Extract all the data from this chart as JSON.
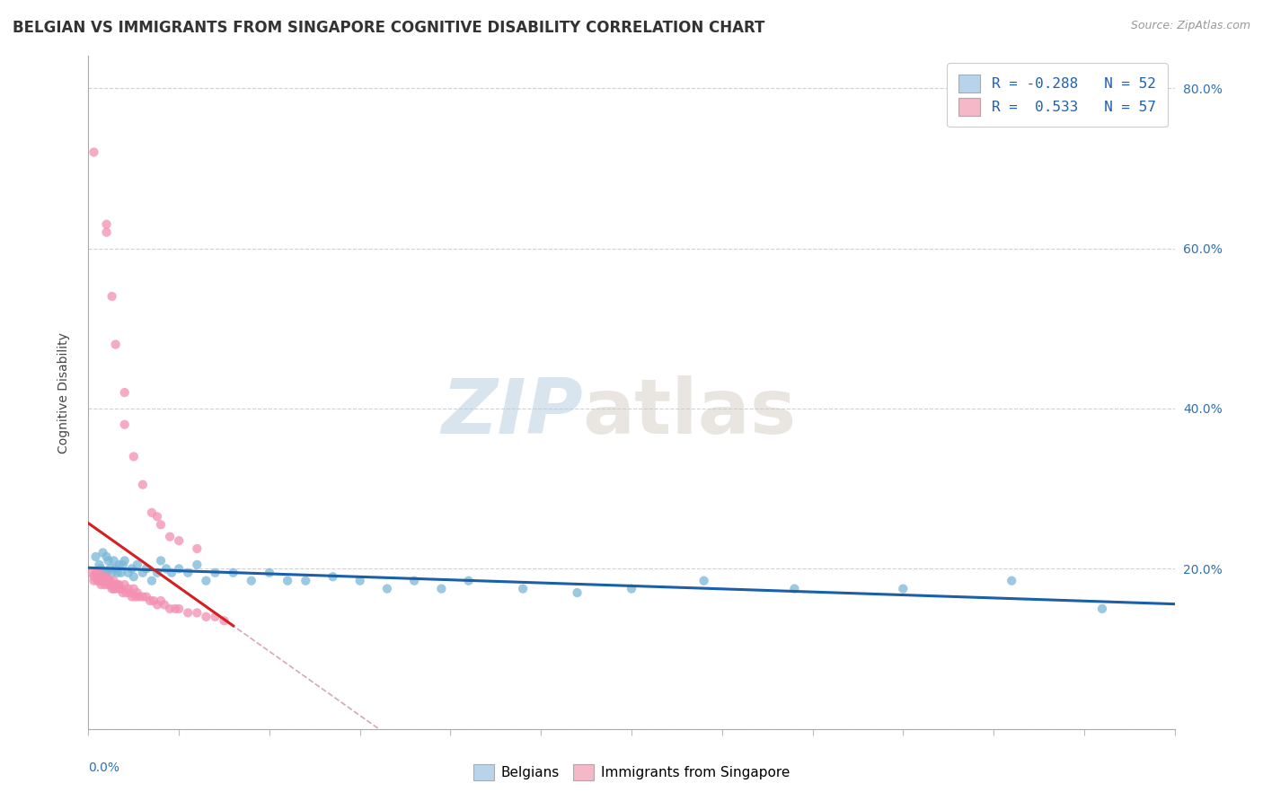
{
  "title": "BELGIAN VS IMMIGRANTS FROM SINGAPORE COGNITIVE DISABILITY CORRELATION CHART",
  "source": "Source: ZipAtlas.com",
  "ylabel": "Cognitive Disability",
  "xmin": 0.0,
  "xmax": 0.6,
  "ymin": 0.0,
  "ymax": 0.84,
  "yticks": [
    0.0,
    0.2,
    0.4,
    0.6,
    0.8
  ],
  "ytick_labels": [
    "",
    "20.0%",
    "40.0%",
    "60.0%",
    "80.0%"
  ],
  "watermark_zip": "ZIP",
  "watermark_atlas": "atlas",
  "legend_entries": [
    {
      "label_r": "R = -0.288",
      "label_n": "N = 52",
      "color": "#b8d4ea"
    },
    {
      "label_r": "R =  0.533",
      "label_n": "N = 57",
      "color": "#f4b8c8"
    }
  ],
  "blue_scatter_color": "#7ab8d8",
  "pink_scatter_color": "#f48fb1",
  "blue_line_color": "#1a5fa8",
  "pink_line_color": "#d42020",
  "dashed_line_color": "#d0a0a8",
  "belgians_x": [
    0.004,
    0.006,
    0.007,
    0.008,
    0.009,
    0.01,
    0.01,
    0.011,
    0.012,
    0.013,
    0.014,
    0.015,
    0.016,
    0.017,
    0.018,
    0.019,
    0.02,
    0.022,
    0.024,
    0.025,
    0.027,
    0.03,
    0.032,
    0.035,
    0.038,
    0.04,
    0.043,
    0.046,
    0.05,
    0.055,
    0.06,
    0.065,
    0.07,
    0.08,
    0.09,
    0.1,
    0.11,
    0.12,
    0.135,
    0.15,
    0.165,
    0.18,
    0.195,
    0.21,
    0.24,
    0.27,
    0.3,
    0.34,
    0.39,
    0.45,
    0.51,
    0.56
  ],
  "belgians_y": [
    0.215,
    0.205,
    0.2,
    0.22,
    0.195,
    0.215,
    0.195,
    0.21,
    0.2,
    0.195,
    0.21,
    0.2,
    0.195,
    0.205,
    0.195,
    0.205,
    0.21,
    0.195,
    0.2,
    0.19,
    0.205,
    0.195,
    0.2,
    0.185,
    0.195,
    0.21,
    0.2,
    0.195,
    0.2,
    0.195,
    0.205,
    0.185,
    0.195,
    0.195,
    0.185,
    0.195,
    0.185,
    0.185,
    0.19,
    0.185,
    0.175,
    0.185,
    0.175,
    0.185,
    0.175,
    0.17,
    0.175,
    0.185,
    0.175,
    0.175,
    0.185,
    0.15
  ],
  "singapore_x": [
    0.002,
    0.003,
    0.003,
    0.004,
    0.005,
    0.005,
    0.006,
    0.006,
    0.006,
    0.007,
    0.007,
    0.007,
    0.008,
    0.008,
    0.009,
    0.009,
    0.01,
    0.01,
    0.011,
    0.011,
    0.012,
    0.012,
    0.013,
    0.013,
    0.014,
    0.014,
    0.015,
    0.015,
    0.016,
    0.017,
    0.017,
    0.018,
    0.019,
    0.02,
    0.021,
    0.022,
    0.023,
    0.024,
    0.025,
    0.026,
    0.027,
    0.028,
    0.03,
    0.032,
    0.034,
    0.036,
    0.038,
    0.04,
    0.042,
    0.045,
    0.048,
    0.05,
    0.055,
    0.06,
    0.065,
    0.07,
    0.075
  ],
  "singapore_y": [
    0.195,
    0.19,
    0.185,
    0.195,
    0.185,
    0.19,
    0.19,
    0.185,
    0.195,
    0.185,
    0.19,
    0.18,
    0.185,
    0.19,
    0.18,
    0.185,
    0.185,
    0.19,
    0.18,
    0.185,
    0.18,
    0.185,
    0.175,
    0.18,
    0.185,
    0.175,
    0.18,
    0.175,
    0.18,
    0.175,
    0.18,
    0.175,
    0.17,
    0.18,
    0.17,
    0.175,
    0.17,
    0.165,
    0.175,
    0.165,
    0.17,
    0.165,
    0.165,
    0.165,
    0.16,
    0.16,
    0.155,
    0.16,
    0.155,
    0.15,
    0.15,
    0.15,
    0.145,
    0.145,
    0.14,
    0.14,
    0.135
  ],
  "singapore_outliers_x": [
    0.003,
    0.01,
    0.01,
    0.013,
    0.015,
    0.02,
    0.02,
    0.025,
    0.03,
    0.035,
    0.038,
    0.04,
    0.045,
    0.05,
    0.06
  ],
  "singapore_outliers_y": [
    0.72,
    0.63,
    0.62,
    0.54,
    0.48,
    0.42,
    0.38,
    0.34,
    0.305,
    0.27,
    0.265,
    0.255,
    0.24,
    0.235,
    0.225
  ],
  "title_fontsize": 12,
  "axis_label_fontsize": 10,
  "tick_fontsize": 10
}
